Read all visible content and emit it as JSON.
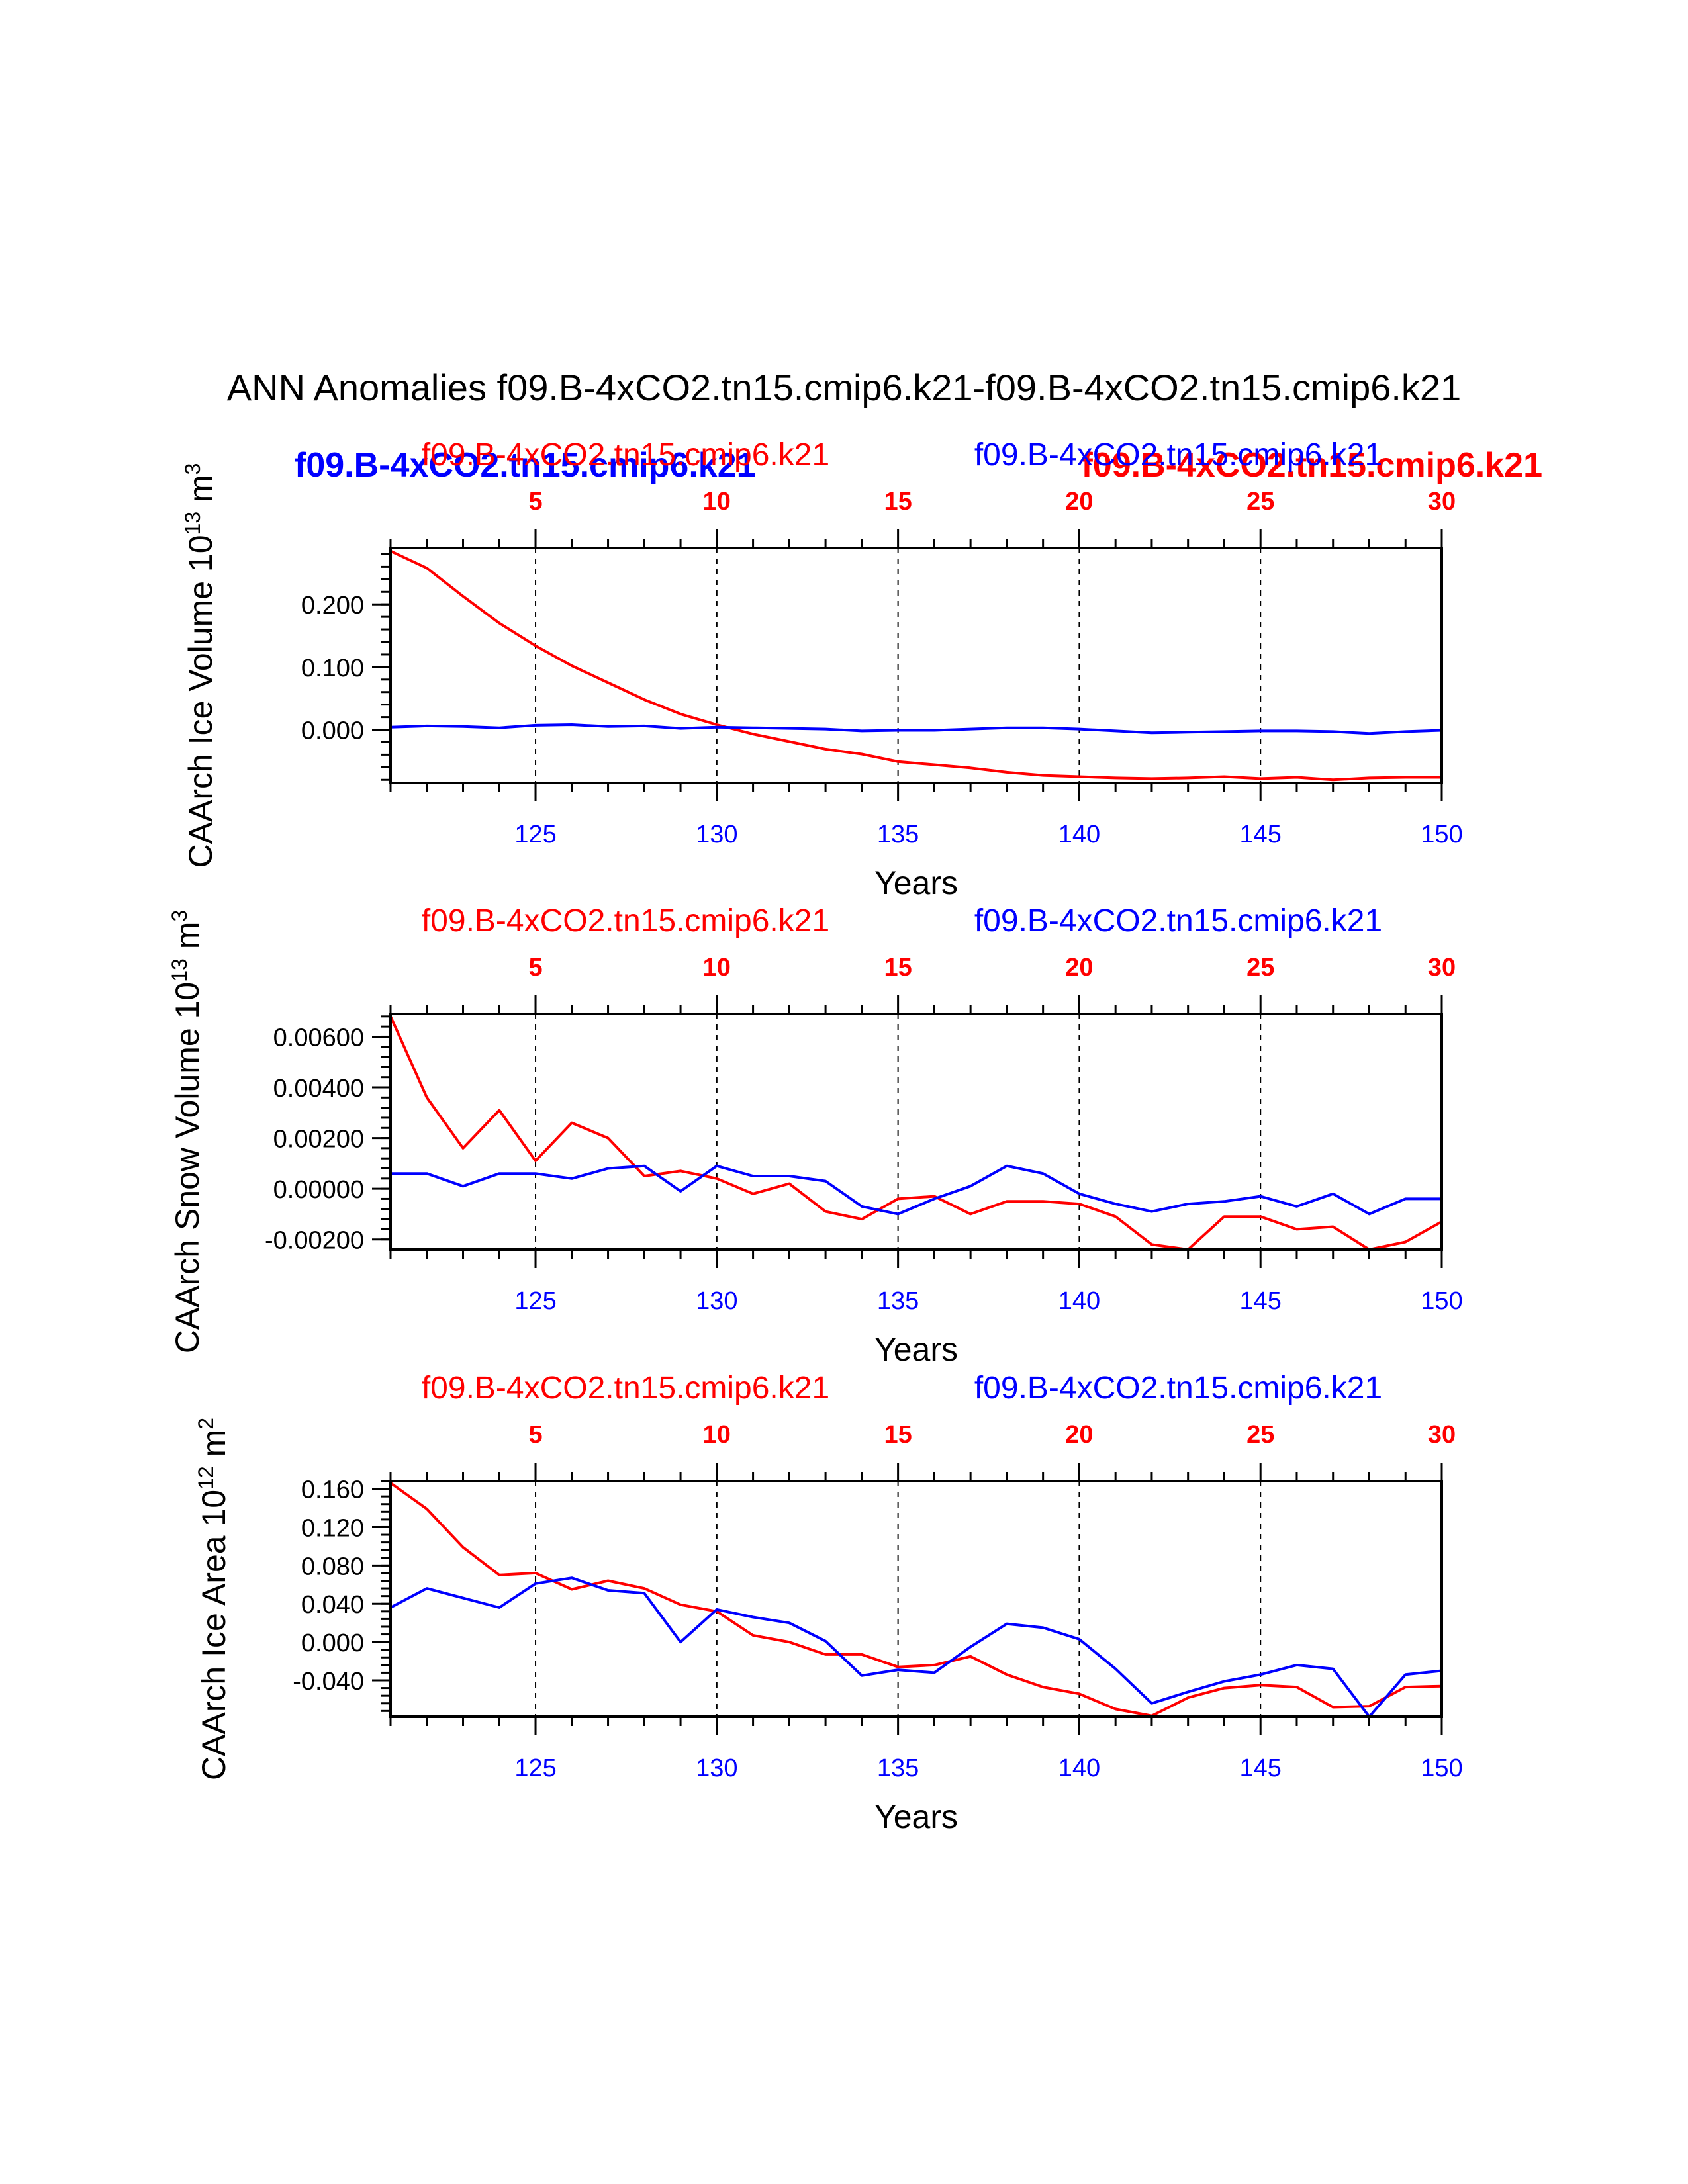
{
  "chart_data": {
    "type": "line",
    "title": "ANN Anomalies f09.B-4xCO2.tn15.cmip6.k21-f09.B-4xCO2.tn15.cmip6.k21",
    "legend_top_left": "f09.B-4xCO2.tn15.cmip6.k21",
    "legend_top_right": "f09.B-4xCO2.tn15.cmip6.k21",
    "colors": {
      "series_a": "#ff0000",
      "series_b": "#0000ff",
      "axis": "#000000"
    },
    "panels": [
      {
        "ylabel": "CAArch Ice Volume 10",
        "ylabel_exp": "13",
        "ylabel_unit": " m",
        "ylabel_unit_exp": "3",
        "xlabel": "Years",
        "top_label_red": "f09.B-4xCO2.tn15.cmip6.k21",
        "top_label_blue": "f09.B-4xCO2.tn15.cmip6.k21",
        "ylim": [
          -0.085,
          0.29
        ],
        "yticks": [
          0.0,
          0.1,
          0.2
        ],
        "ytick_labels": [
          "0.000",
          "0.100",
          "0.200"
        ],
        "ylabel_x_offset": -270,
        "series": [
          {
            "name": "f09.B-4xCO2.tn15.cmip6.k21",
            "color": "#ff0000",
            "values": [
              0.285,
              0.258,
              0.213,
              0.17,
              0.134,
              0.102,
              0.075,
              0.048,
              0.025,
              0.008,
              -0.007,
              -0.019,
              -0.031,
              -0.039,
              -0.051,
              -0.056,
              -0.061,
              -0.068,
              -0.073,
              -0.075,
              -0.077,
              -0.078,
              -0.077,
              -0.075,
              -0.078,
              -0.076,
              -0.08,
              -0.077,
              -0.076,
              -0.076
            ]
          },
          {
            "name": "f09.B-4xCO2.tn15.cmip6.k21",
            "color": "#0000ff",
            "values": [
              0.004,
              0.006,
              0.005,
              0.003,
              0.007,
              0.008,
              0.005,
              0.006,
              0.002,
              0.004,
              0.003,
              0.002,
              0.001,
              -0.002,
              -0.001,
              -0.001,
              0.001,
              0.003,
              0.003,
              0.001,
              -0.002,
              -0.005,
              -0.004,
              -0.003,
              -0.002,
              -0.002,
              -0.003,
              -0.006,
              -0.003,
              -0.001
            ]
          }
        ]
      },
      {
        "ylabel": "CAArch Snow Volume 10",
        "ylabel_exp": "13",
        "ylabel_unit": " m",
        "ylabel_unit_exp": "3",
        "xlabel": "Years",
        "top_label_red": "f09.B-4xCO2.tn15.cmip6.k21",
        "top_label_blue": "f09.B-4xCO2.tn15.cmip6.k21",
        "ylim": [
          -0.0024,
          0.0069
        ],
        "yticks": [
          -0.002,
          0.0,
          0.002,
          0.004,
          0.006
        ],
        "ytick_labels": [
          "-0.00200",
          "0.00000",
          "0.00200",
          "0.00400",
          "0.00600"
        ],
        "ylabel_x_offset": -290,
        "series": [
          {
            "name": "f09.B-4xCO2.tn15.cmip6.k21",
            "color": "#ff0000",
            "values": [
              0.0068,
              0.0036,
              0.0016,
              0.0031,
              0.0011,
              0.0026,
              0.002,
              0.0005,
              0.0007,
              0.0004,
              -0.0002,
              0.0002,
              -0.0009,
              -0.0012,
              -0.0004,
              -0.0003,
              -0.001,
              -0.0005,
              -0.0005,
              -0.0006,
              -0.0011,
              -0.0022,
              -0.0024,
              -0.0011,
              -0.0011,
              -0.0016,
              -0.0015,
              -0.0024,
              -0.0021,
              -0.0013
            ]
          },
          {
            "name": "f09.B-4xCO2.tn15.cmip6.k21",
            "color": "#0000ff",
            "values": [
              0.0006,
              0.0006,
              0.0001,
              0.0006,
              0.0006,
              0.0004,
              0.0008,
              0.0009,
              -0.0001,
              0.0009,
              0.0005,
              0.0005,
              0.0003,
              -0.0007,
              -0.001,
              -0.0004,
              0.0001,
              0.0009,
              0.0006,
              -0.0002,
              -0.0006,
              -0.0009,
              -0.0006,
              -0.0005,
              -0.0003,
              -0.0007,
              -0.0002,
              -0.001,
              -0.0004,
              -0.0004
            ]
          }
        ]
      },
      {
        "ylabel": "CAArch Ice Area 10",
        "ylabel_exp": "12",
        "ylabel_unit": " m",
        "ylabel_unit_exp": "2",
        "xlabel": "Years",
        "top_label_red": "f09.B-4xCO2.tn15.cmip6.k21",
        "top_label_blue": "f09.B-4xCO2.tn15.cmip6.k21",
        "ylim": [
          -0.078,
          0.168
        ],
        "yticks": [
          -0.04,
          0.0,
          0.04,
          0.08,
          0.12,
          0.16
        ],
        "ytick_labels": [
          "-0.040",
          "0.000",
          "0.040",
          "0.080",
          "0.120",
          "0.160"
        ],
        "ylabel_x_offset": -250,
        "series": [
          {
            "name": "f09.B-4xCO2.tn15.cmip6.k21",
            "color": "#ff0000",
            "values": [
              0.166,
              0.139,
              0.099,
              0.07,
              0.072,
              0.055,
              0.064,
              0.056,
              0.039,
              0.032,
              0.007,
              0.0,
              -0.013,
              -0.013,
              -0.026,
              -0.024,
              -0.015,
              -0.034,
              -0.047,
              -0.054,
              -0.07,
              -0.077,
              -0.058,
              -0.048,
              -0.045,
              -0.047,
              -0.068,
              -0.067,
              -0.047,
              -0.046
            ]
          },
          {
            "name": "f09.B-4xCO2.tn15.cmip6.k21",
            "color": "#0000ff",
            "values": [
              0.036,
              0.056,
              0.046,
              0.036,
              0.061,
              0.067,
              0.054,
              0.051,
              0.0,
              0.034,
              0.026,
              0.02,
              0.001,
              -0.035,
              -0.029,
              -0.032,
              -0.005,
              0.019,
              0.015,
              0.003,
              -0.028,
              -0.064,
              -0.052,
              -0.041,
              -0.034,
              -0.024,
              -0.028,
              -0.078,
              -0.034,
              -0.03
            ]
          }
        ]
      }
    ],
    "x_bottom": {
      "range": [
        121,
        150
      ],
      "ticks": [
        125,
        130,
        135,
        140,
        145,
        150
      ]
    },
    "x_top": {
      "ticks": [
        5,
        10,
        15,
        20,
        25,
        30
      ],
      "offset": 120
    }
  }
}
